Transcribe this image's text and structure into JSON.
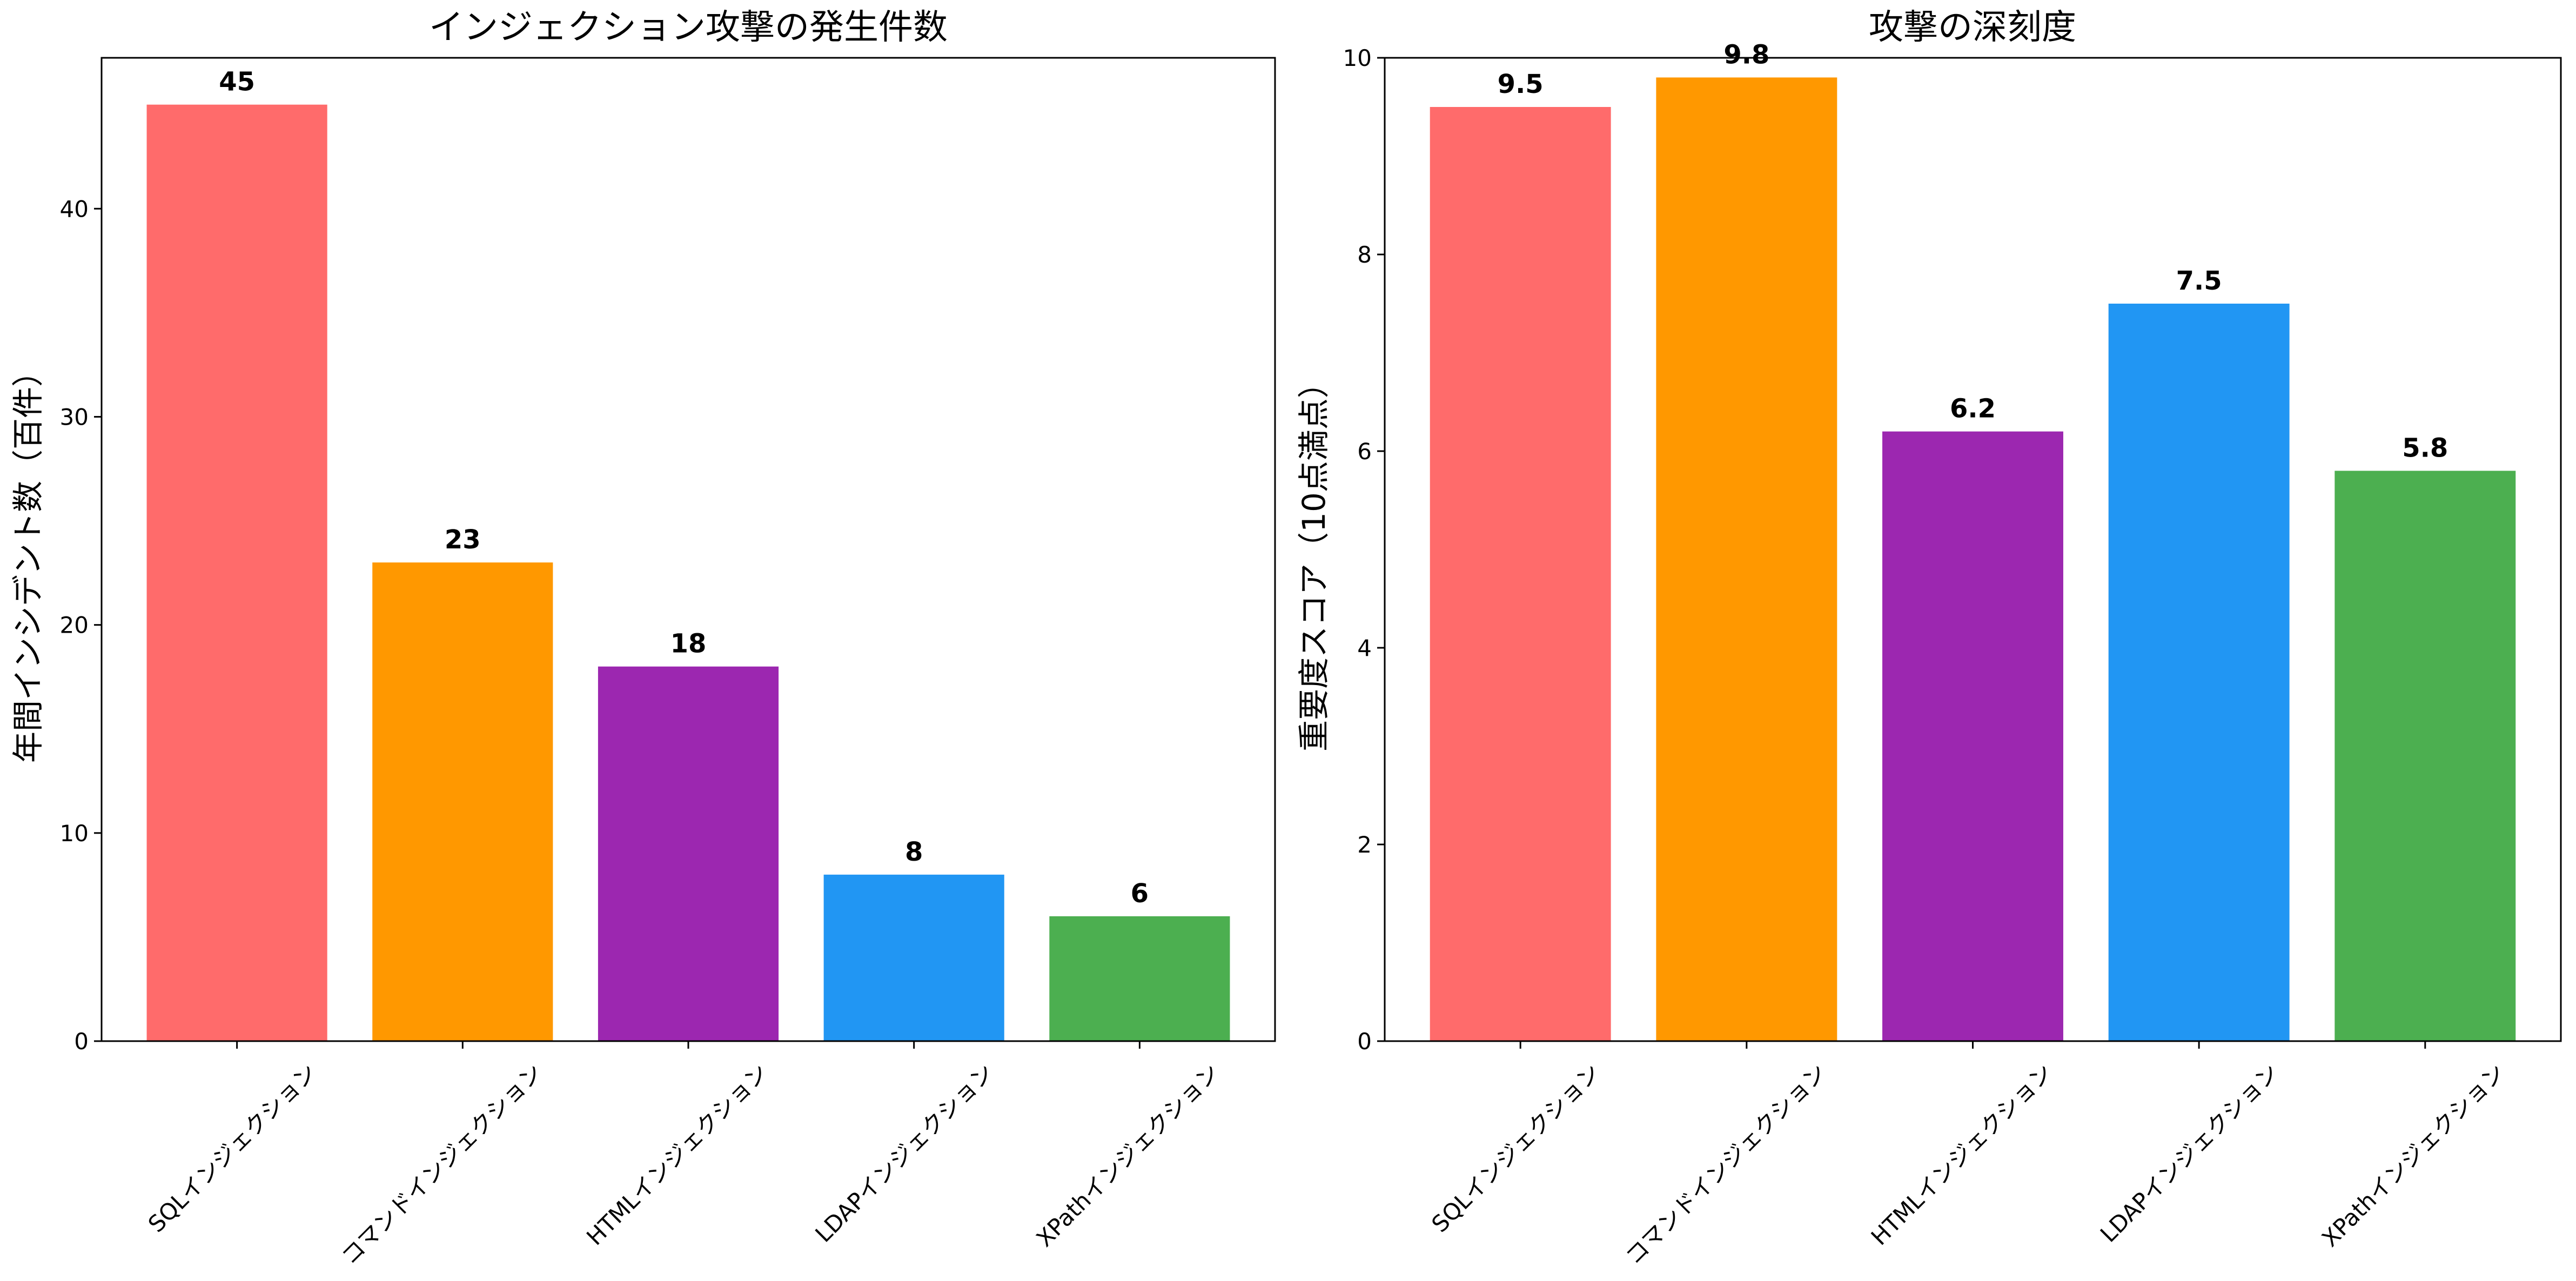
{
  "chart_data": [
    {
      "type": "bar",
      "title": "インジェクション攻撃の発生件数",
      "xlabel": "",
      "ylabel": "年間インシデント数（百件）",
      "categories": [
        "SQLインジェクション",
        "コマンドインジェクション",
        "HTMLインジェクション",
        "LDAPインジェクション",
        "XPathインジェクション"
      ],
      "values": [
        45,
        23,
        18,
        8,
        6
      ],
      "value_labels": [
        "45",
        "23",
        "18",
        "8",
        "6"
      ],
      "colors": [
        "#FF6B6B",
        "#FF9800",
        "#9C27B0",
        "#2196F3",
        "#4CAF50"
      ],
      "ylim": [
        0,
        47.25
      ],
      "yticks": [
        0,
        10,
        20,
        30,
        40
      ],
      "ytick_labels": [
        "0",
        "10",
        "20",
        "30",
        "40"
      ],
      "grid": false,
      "legend": "none"
    },
    {
      "type": "bar",
      "title": "攻撃の深刻度",
      "xlabel": "",
      "ylabel": "重要度スコア（10点満点）",
      "categories": [
        "SQLインジェクション",
        "コマンドインジェクション",
        "HTMLインジェクション",
        "LDAPインジェクション",
        "XPathインジェクション"
      ],
      "values": [
        9.5,
        9.8,
        6.2,
        7.5,
        5.8
      ],
      "value_labels": [
        "9.5",
        "9.8",
        "6.2",
        "7.5",
        "5.8"
      ],
      "colors": [
        "#FF6B6B",
        "#FF9800",
        "#9C27B0",
        "#2196F3",
        "#4CAF50"
      ],
      "ylim": [
        0,
        10
      ],
      "yticks": [
        0,
        2,
        4,
        6,
        8,
        10
      ],
      "ytick_labels": [
        "0",
        "2",
        "4",
        "6",
        "8",
        "10"
      ],
      "grid": false,
      "legend": "none"
    }
  ]
}
